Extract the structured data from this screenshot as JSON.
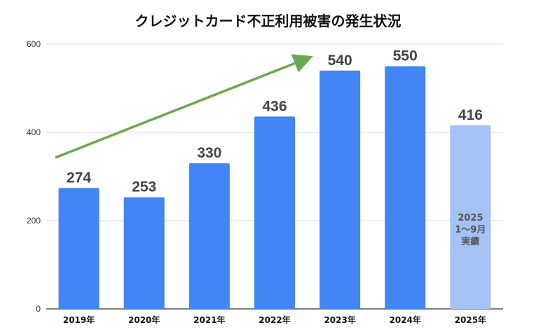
{
  "chart_data": {
    "type": "bar",
    "title": "クレジットカード不正利用被害の発生状況",
    "xlabel": "",
    "ylabel": "",
    "ylim": [
      0,
      600
    ],
    "yticks": [
      0,
      200,
      400,
      600
    ],
    "categories": [
      "2019年",
      "2020年",
      "2021年",
      "2022年",
      "2023年",
      "2024年",
      "2025年"
    ],
    "values": [
      274,
      253,
      330,
      436,
      540,
      550,
      416
    ],
    "bar_colors": [
      "#4285f4",
      "#4285f4",
      "#4285f4",
      "#4285f4",
      "#4285f4",
      "#4285f4",
      "#a4c2f4"
    ],
    "annotations": {
      "partial_year_note": [
        "2025",
        "1〜9月",
        "実績"
      ],
      "trend_arrow_color": "#6aa84f"
    },
    "grid": true,
    "legend": "none"
  }
}
